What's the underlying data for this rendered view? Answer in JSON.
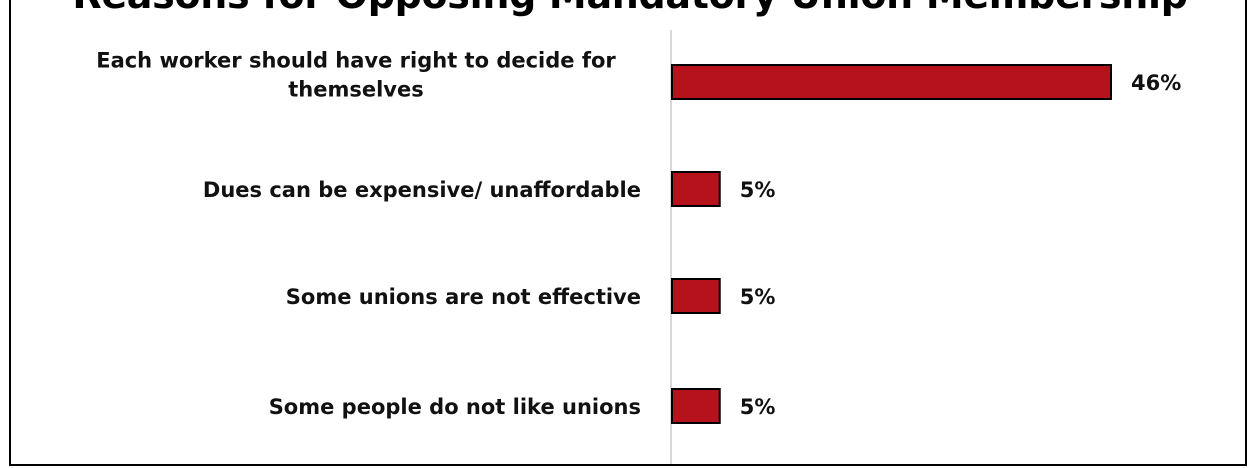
{
  "chart_data": {
    "type": "bar",
    "orientation": "horizontal",
    "title": "Reasons for Opposing Mandatory Union Membership",
    "categories": [
      "Each worker should have right to decide for themselves",
      "Dues can be expensive/ unaffordable",
      "Some unions are not effective",
      "Some people do not like unions"
    ],
    "category_lines": [
      [
        "Each worker should have right to decide for",
        "themselves"
      ],
      [
        "Dues can be expensive/ unaffordable"
      ],
      [
        "Some unions are not effective"
      ],
      [
        "Some people do not like unions"
      ]
    ],
    "values": [
      46,
      5,
      5,
      5
    ],
    "value_labels": [
      "46%",
      "5%",
      "5%",
      "5%"
    ],
    "unit": "%",
    "xlim": [
      0,
      60
    ],
    "grid": false,
    "legend": "none",
    "colors": {
      "bar": "#b5121b",
      "bar_border": "#000000",
      "axis_line": "#d9d9d9"
    }
  }
}
